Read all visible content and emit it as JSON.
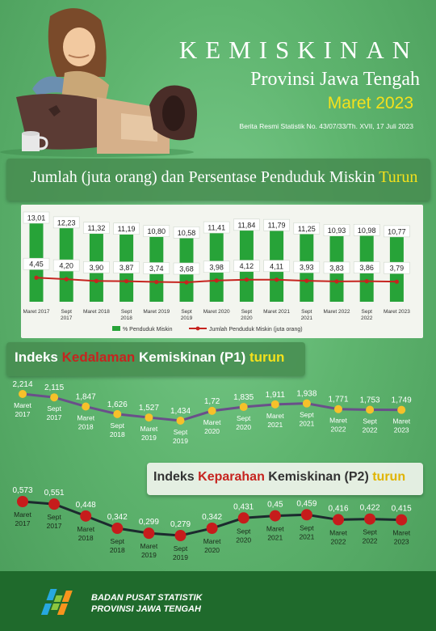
{
  "header": {
    "title": "KEMISKINAN",
    "subtitle": "Provinsi Jawa Tengah",
    "period": "Maret 2023",
    "release": "Berita Resmi Statistik No. 43/07/33/Th. XVII, 17 Juli 2023"
  },
  "sections": {
    "jumlah": {
      "title_main": "Jumlah (juta orang) dan Persentase Penduduk Miskin ",
      "title_trend": "Turun"
    },
    "p1": {
      "title_a": "Indeks ",
      "title_hl": "Kedalaman",
      "title_b": " Kemiskinan (P1) ",
      "title_trend": "turun"
    },
    "p2": {
      "title_a": "Indeks ",
      "title_hl": "Keparahan",
      "title_b": " Kemiskinan (P2) ",
      "title_trend": "turun"
    }
  },
  "chart_data": [
    {
      "type": "bar",
      "categories": [
        "Maret 2017",
        "Sept 2017",
        "Maret 2018",
        "Sept 2018",
        "Maret 2019",
        "Sept 2019",
        "Maret 2020",
        "Sept 2020",
        "Maret 2021",
        "Sept 2021",
        "Maret 2022",
        "Sept 2022",
        "Maret 2023"
      ],
      "series": [
        {
          "name": "% Penduduk Miskin",
          "type": "bar",
          "values": [
            13.01,
            12.23,
            11.32,
            11.19,
            10.8,
            10.58,
            11.41,
            11.84,
            11.79,
            11.25,
            10.93,
            10.98,
            10.77
          ],
          "labels": [
            "13,01",
            "12,23",
            "11,32",
            "11,19",
            "10,80",
            "10,58",
            "11,41",
            "11,84",
            "11,79",
            "11,25",
            "10,93",
            "10,98",
            "10,77"
          ]
        },
        {
          "name": "Jumlah Penduduk Miskin (juta orang)",
          "type": "line",
          "values": [
            4.45,
            4.2,
            3.9,
            3.87,
            3.74,
            3.68,
            3.98,
            4.12,
            4.11,
            3.93,
            3.83,
            3.86,
            3.79
          ],
          "labels": [
            "4,45",
            "4,20",
            "3,90",
            "3,87",
            "3,74",
            "3,68",
            "3,98",
            "4,12",
            "4,11",
            "3,93",
            "3,83",
            "3,86",
            "3,79"
          ]
        }
      ],
      "legend": "bottom",
      "colors": {
        "bar": "#27a338",
        "line": "#c6241f"
      }
    },
    {
      "type": "line",
      "series": [
        {
          "name": "P1",
          "values": [
            2.214,
            2.115,
            1.847,
            1.626,
            1.527,
            1.434,
            1.72,
            1.835,
            1.911,
            1.938,
            1.771,
            1.753,
            1.749
          ],
          "labels": [
            "2,214",
            "2,115",
            "1,847",
            "1,626",
            "1,527",
            "1,434",
            "1,72",
            "1,835",
            "1,911",
            "1,938",
            "1,771",
            "1,753",
            "1,749"
          ]
        }
      ],
      "categories": [
        "Maret 2017",
        "Sept 2017",
        "Maret 2018",
        "Sept 2018",
        "Maret 2019",
        "Sept 2019",
        "Maret 2020",
        "Sept 2020",
        "Maret 2021",
        "Sept 2021",
        "Maret 2022",
        "Sept 2022",
        "Maret 2023"
      ],
      "colors": {
        "line": "#6a4f8a",
        "marker": "#f6c12a"
      }
    },
    {
      "type": "line",
      "series": [
        {
          "name": "P2",
          "values": [
            0.573,
            0.551,
            0.448,
            0.342,
            0.299,
            0.279,
            0.342,
            0.431,
            0.45,
            0.459,
            0.416,
            0.422,
            0.415
          ],
          "labels": [
            "0,573",
            "0,551",
            "0,448",
            "0,342",
            "0,299",
            "0,279",
            "0,342",
            "0,431",
            "0,45",
            "0,459",
            "0,416",
            "0,422",
            "0,415"
          ]
        }
      ],
      "categories": [
        "Maret 2017",
        "Sept 2017",
        "Maret 2018",
        "Sept 2018",
        "Maret 2019",
        "Sept 2019",
        "Maret 2020",
        "Sept 2020",
        "Maret 2021",
        "Sept 2021",
        "Maret 2022",
        "Sept 2022",
        "Maret 2023"
      ],
      "colors": {
        "line": "#1c2a2e",
        "marker": "#c61c1c"
      }
    }
  ],
  "footer": {
    "org_name": "BADAN PUSAT STATISTIK",
    "org_province": "PROVINSI JAWA TENGAH"
  }
}
